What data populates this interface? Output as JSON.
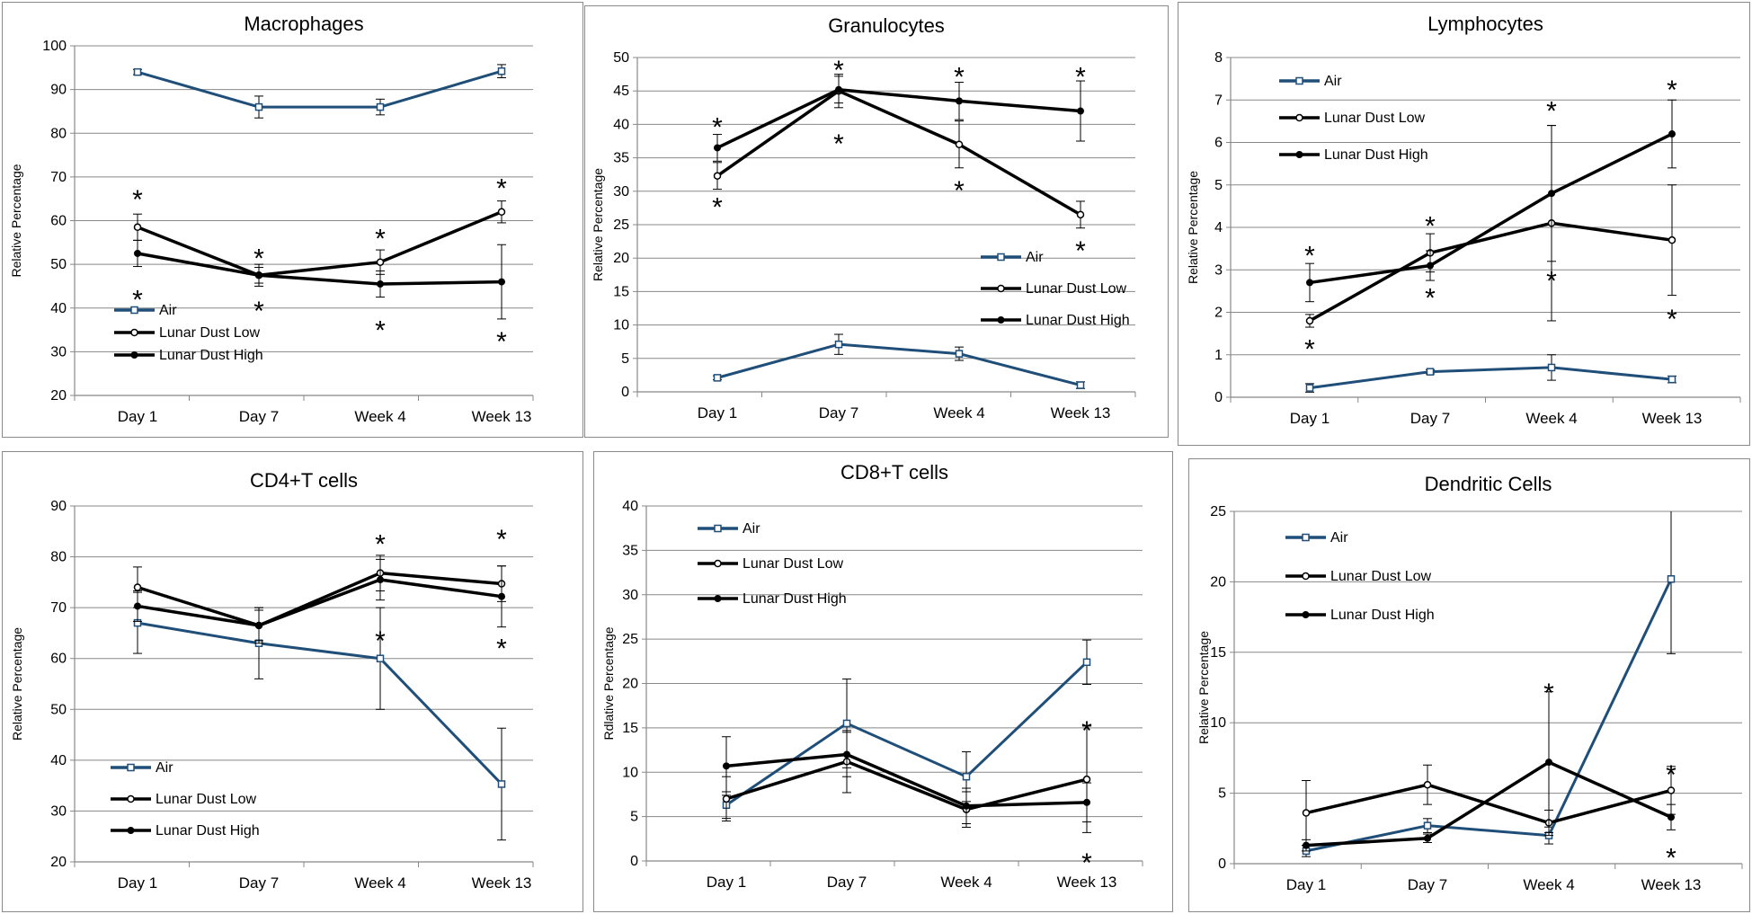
{
  "colors": {
    "air": "#1f4e79",
    "low": "#000000",
    "high": "#000000",
    "grid": "#888888",
    "axis": "#888888"
  },
  "chart_data": [
    {
      "type": "line",
      "title": "Macrophages",
      "ylabel": "Relative Percentage",
      "xlabel": "",
      "categories": [
        "Day 1",
        "Day 7",
        "Week 4",
        "Week 13"
      ],
      "ylim": [
        20,
        100
      ],
      "yticks": [
        20,
        30,
        40,
        50,
        60,
        70,
        80,
        90,
        100
      ],
      "grid": true,
      "legend_position": "bottom-left",
      "series": [
        {
          "name": "Air",
          "key": "air",
          "values": [
            94,
            86,
            86,
            94.2
          ],
          "errors": [
            0.6,
            2.5,
            1.8,
            1.5
          ]
        },
        {
          "name": "Lunar Dust Low",
          "key": "low",
          "values": [
            58.5,
            47.5,
            50.5,
            62
          ],
          "errors": [
            3,
            1.8,
            2.8,
            2.5
          ]
        },
        {
          "name": "Lunar Dust High",
          "key": "high",
          "values": [
            52.5,
            47.5,
            45.5,
            46
          ],
          "errors": [
            3,
            2.5,
            3,
            8.5
          ]
        }
      ],
      "annotations": [
        {
          "text": "*",
          "x": 0,
          "y": 65.5
        },
        {
          "text": "*",
          "x": 0,
          "y": 42.5
        },
        {
          "text": "*",
          "x": 1,
          "y": 52
        },
        {
          "text": "*",
          "x": 1,
          "y": 40
        },
        {
          "text": "*",
          "x": 2,
          "y": 56.5
        },
        {
          "text": "*",
          "x": 2,
          "y": 35.5
        },
        {
          "text": "*",
          "x": 3,
          "y": 68
        },
        {
          "text": "*",
          "x": 3,
          "y": 33
        }
      ]
    },
    {
      "type": "line",
      "title": "Granulocytes",
      "ylabel": "Relative Percentage",
      "xlabel": "",
      "categories": [
        "Day 1",
        "Day 7",
        "Week 4",
        "Week 13"
      ],
      "ylim": [
        0,
        50
      ],
      "yticks": [
        0,
        5,
        10,
        15,
        20,
        25,
        30,
        35,
        40,
        45,
        50
      ],
      "grid": true,
      "legend_position": "center-right",
      "series": [
        {
          "name": "Air",
          "key": "air",
          "values": [
            2.1,
            7.1,
            5.7,
            1.0
          ],
          "errors": [
            0.3,
            1.5,
            1.0,
            0.5
          ]
        },
        {
          "name": "Lunar Dust Low",
          "key": "low",
          "values": [
            32.3,
            45.0,
            37.0,
            26.5
          ],
          "errors": [
            2.0,
            2.5,
            3.5,
            2.0
          ]
        },
        {
          "name": "Lunar Dust High",
          "key": "high",
          "values": [
            36.5,
            45.2,
            43.5,
            42.0
          ],
          "errors": [
            2.0,
            2.0,
            2.8,
            4.5
          ]
        }
      ],
      "annotations": [
        {
          "text": "*",
          "x": 0,
          "y": 40
        },
        {
          "text": "*",
          "x": 0,
          "y": 28
        },
        {
          "text": "*",
          "x": 1,
          "y": 48.5
        },
        {
          "text": "*",
          "x": 1,
          "y": 37.5
        },
        {
          "text": "*",
          "x": 2,
          "y": 47.5
        },
        {
          "text": "*",
          "x": 2,
          "y": 30.5
        },
        {
          "text": "*",
          "x": 3,
          "y": 47.5
        },
        {
          "text": "*",
          "x": 3,
          "y": 21.5
        }
      ]
    },
    {
      "type": "line",
      "title": "Lymphocytes",
      "ylabel": "Relative Percentage",
      "xlabel": "",
      "categories": [
        "Day 1",
        "Day 7",
        "Week 4",
        "Week 13"
      ],
      "ylim": [
        0,
        8
      ],
      "yticks": [
        0,
        1,
        2,
        3,
        4,
        5,
        6,
        7,
        8
      ],
      "grid": true,
      "legend_position": "top-left",
      "series": [
        {
          "name": "Air",
          "key": "air",
          "values": [
            0.22,
            0.6,
            0.7,
            0.42
          ],
          "errors": [
            0.1,
            0.05,
            0.3,
            0.08
          ]
        },
        {
          "name": "Lunar Dust Low",
          "key": "low",
          "values": [
            1.8,
            3.4,
            4.1,
            3.7
          ],
          "errors": [
            0.15,
            0.45,
            2.3,
            1.3
          ]
        },
        {
          "name": "Lunar Dust High",
          "key": "high",
          "values": [
            2.7,
            3.1,
            4.8,
            6.2
          ],
          "errors": [
            0.45,
            0.35,
            1.6,
            0.8
          ]
        }
      ],
      "annotations": [
        {
          "text": "*",
          "x": 0,
          "y": 3.4
        },
        {
          "text": "*",
          "x": 0,
          "y": 1.2
        },
        {
          "text": "*",
          "x": 1,
          "y": 4.1
        },
        {
          "text": "*",
          "x": 1,
          "y": 2.4
        },
        {
          "text": "*",
          "x": 2,
          "y": 6.8
        },
        {
          "text": "*",
          "x": 2,
          "y": 2.8
        },
        {
          "text": "*",
          "x": 3,
          "y": 7.3
        },
        {
          "text": "*",
          "x": 3,
          "y": 1.9
        }
      ]
    },
    {
      "type": "line",
      "title": "CD4+T cells",
      "ylabel": "Relative Percentage",
      "xlabel": "",
      "categories": [
        "Day 1",
        "Day 7",
        "Week 4",
        "Week 13"
      ],
      "ylim": [
        20,
        90
      ],
      "yticks": [
        20,
        30,
        40,
        50,
        60,
        70,
        80,
        90
      ],
      "grid": true,
      "legend_position": "bottom-left",
      "series": [
        {
          "name": "Air",
          "key": "air",
          "values": [
            67,
            63,
            60,
            35.3
          ],
          "errors": [
            6,
            7,
            10,
            11
          ]
        },
        {
          "name": "Lunar Dust Low",
          "key": "low",
          "values": [
            74,
            66.5,
            76.8,
            74.7
          ],
          "errors": [
            4,
            3.5,
            3.5,
            3.5
          ]
        },
        {
          "name": "Lunar Dust High",
          "key": "high",
          "values": [
            70.3,
            66.5,
            75.5,
            72.2
          ],
          "errors": [
            3,
            3,
            4,
            6
          ]
        }
      ],
      "annotations": [
        {
          "text": "*",
          "x": 2,
          "y": 83
        },
        {
          "text": "*",
          "x": 2,
          "y": 64
        },
        {
          "text": "*",
          "x": 3,
          "y": 84
        },
        {
          "text": "*",
          "x": 3,
          "y": 62.5
        }
      ]
    },
    {
      "type": "line",
      "title": "CD8+T cells",
      "ylabel": "Rdlative Percentage",
      "xlabel": "",
      "categories": [
        "Day 1",
        "Day 7",
        "Week 4",
        "Week 13"
      ],
      "ylim": [
        0,
        40
      ],
      "yticks": [
        0,
        5,
        10,
        15,
        20,
        25,
        30,
        35,
        40
      ],
      "grid": true,
      "legend_position": "top-left",
      "series": [
        {
          "name": "Air",
          "key": "air",
          "values": [
            6.3,
            15.5,
            9.5,
            22.4
          ],
          "errors": [
            1.5,
            5,
            2.8,
            2.5
          ]
        },
        {
          "name": "Lunar Dust Low",
          "key": "low",
          "values": [
            7.0,
            11.2,
            5.8,
            9.2
          ],
          "errors": [
            2.5,
            3.5,
            2.0,
            6.0
          ]
        },
        {
          "name": "Lunar Dust High",
          "key": "high",
          "values": [
            10.7,
            12.0,
            6.2,
            6.6
          ],
          "errors": [
            3.3,
            2.5,
            2.0,
            2.2
          ]
        }
      ],
      "annotations": [
        {
          "text": "*",
          "x": 3,
          "y": 15
        },
        {
          "text": "*",
          "x": 3,
          "y": 0.1
        }
      ]
    },
    {
      "type": "line",
      "title": "Dendritic Cells",
      "ylabel": "Relative Percentage",
      "xlabel": "",
      "categories": [
        "Day 1",
        "Day 7",
        "Week 4",
        "Week 13"
      ],
      "ylim": [
        0,
        25
      ],
      "yticks": [
        0,
        5,
        10,
        15,
        20,
        25
      ],
      "grid": true,
      "legend_position": "top-left",
      "series": [
        {
          "name": "Air",
          "key": "air",
          "values": [
            0.9,
            2.7,
            2.0,
            20.2
          ],
          "errors": [
            0.4,
            0.5,
            0.6,
            5.3
          ]
        },
        {
          "name": "Lunar Dust Low",
          "key": "low",
          "values": [
            3.6,
            5.6,
            2.9,
            5.2
          ],
          "errors": [
            2.3,
            1.4,
            0.9,
            1.7
          ]
        },
        {
          "name": "Lunar Dust High",
          "key": "high",
          "values": [
            1.3,
            1.8,
            7.2,
            3.3
          ],
          "errors": [
            0.4,
            0.3,
            5.0,
            0.9
          ]
        }
      ],
      "annotations": [
        {
          "text": "*",
          "x": 2,
          "y": 12.3
        },
        {
          "text": "*",
          "x": 3,
          "y": 6.5
        },
        {
          "text": "*",
          "x": 3,
          "y": 0.6
        }
      ]
    }
  ]
}
